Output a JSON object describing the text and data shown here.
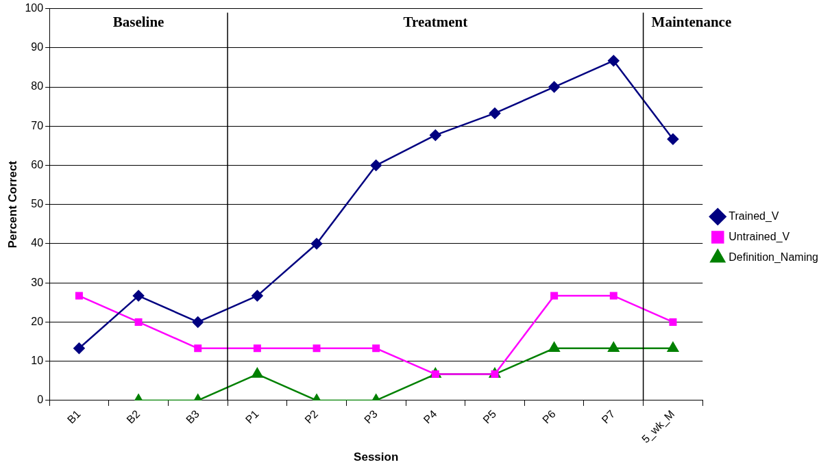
{
  "chart_data": {
    "type": "line",
    "xlabel": "Session",
    "ylabel": "Percent Correct",
    "categories": [
      "B1",
      "B2",
      "B3",
      "P1",
      "P2",
      "P3",
      "P4",
      "P5",
      "P6",
      "P7",
      "5_wk_M"
    ],
    "series": [
      {
        "name": "Trained_V",
        "color": "#000080",
        "marker": "diamond",
        "values": [
          13.3,
          26.7,
          20,
          26.7,
          40,
          60,
          67.7,
          73.3,
          80,
          86.7,
          66.7
        ]
      },
      {
        "name": "Untrained_V",
        "color": "#ff00ff",
        "marker": "square",
        "values": [
          26.7,
          20,
          13.3,
          13.3,
          13.3,
          13.3,
          6.7,
          6.7,
          26.7,
          26.7,
          20
        ]
      },
      {
        "name": "Definition_Naming",
        "color": "#008000",
        "marker": "triangle",
        "values": [
          null,
          0,
          0,
          6.7,
          0,
          0,
          6.7,
          6.7,
          13.3,
          13.3,
          13.3
        ]
      }
    ],
    "ylim": [
      0,
      100
    ],
    "yticks": [
      0,
      10,
      20,
      30,
      40,
      50,
      60,
      70,
      80,
      90,
      100
    ],
    "grid": "y",
    "legend": "right",
    "annotations": [
      "Baseline",
      "Treatment",
      "Maintenance"
    ]
  }
}
